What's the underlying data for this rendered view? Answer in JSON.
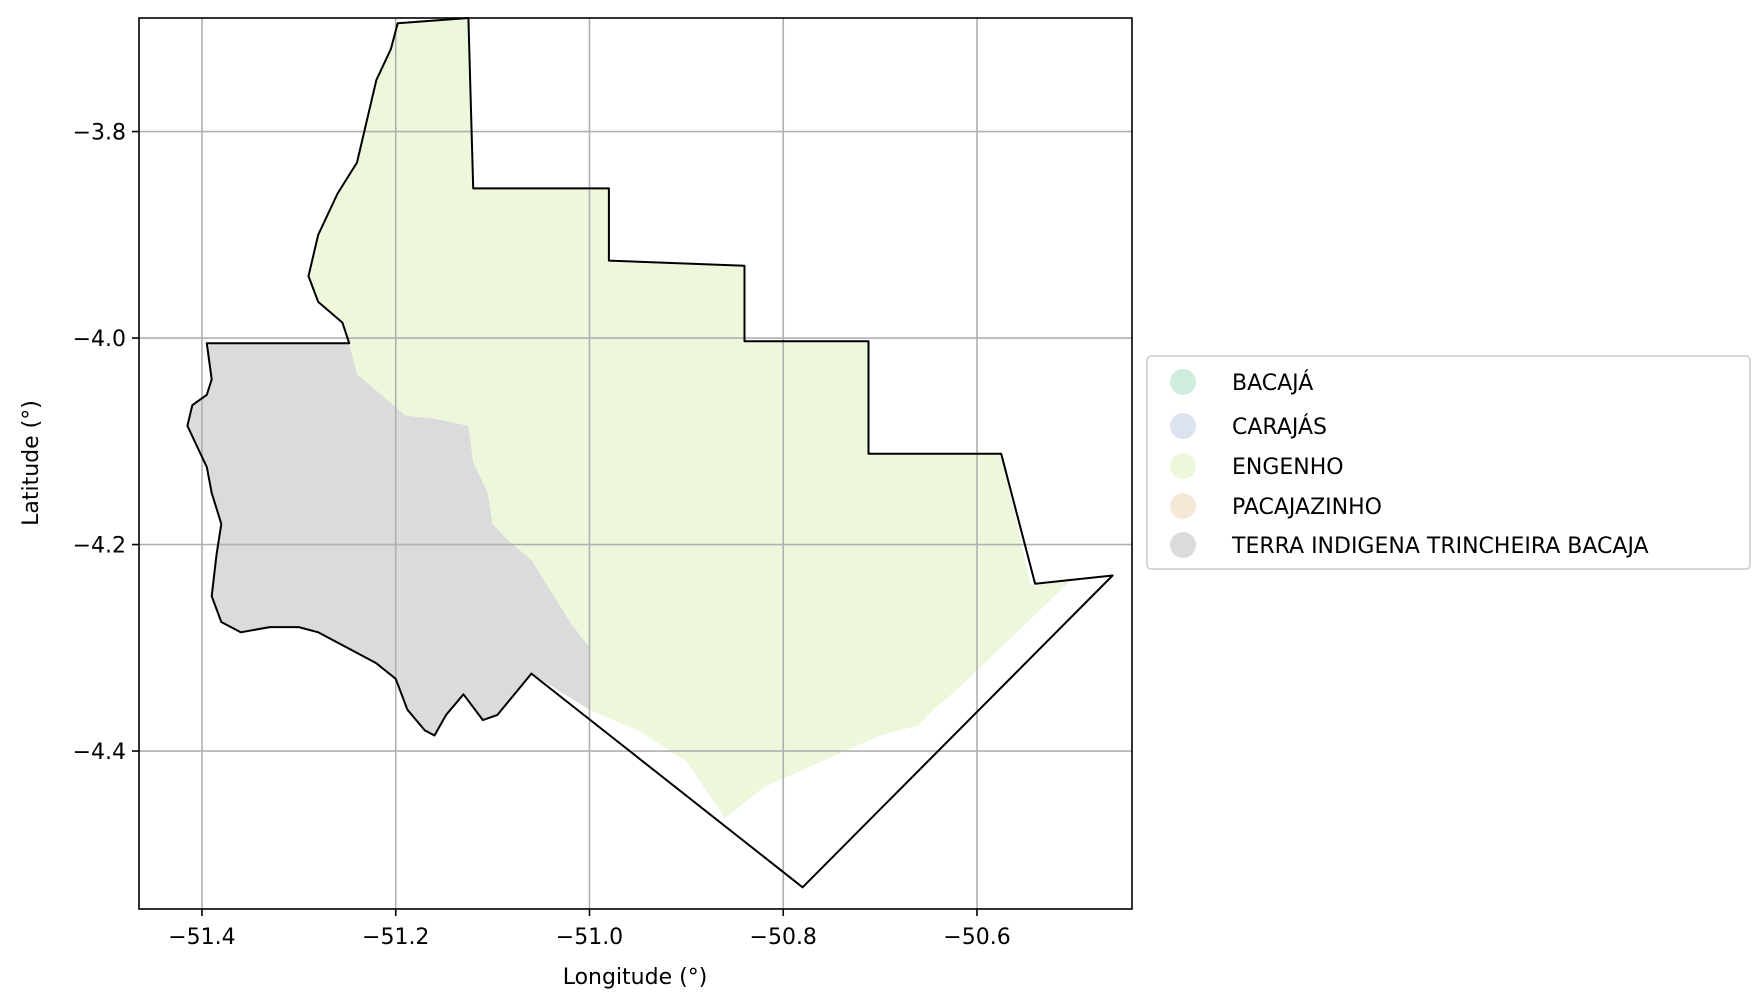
{
  "chart_data": {
    "type": "map",
    "xlabel": "Longitude (°)",
    "ylabel": "Latitude (°)",
    "xlim": [
      -51.465,
      -50.44
    ],
    "ylim": [
      -4.553,
      -3.69
    ],
    "grid": true,
    "x_ticks": [
      -51.4,
      -51.2,
      -51.0,
      -50.8,
      -50.6
    ],
    "y_ticks": [
      -3.8,
      -4.0,
      -4.2,
      -4.4
    ],
    "x_tick_labels": [
      "−51.4",
      "−51.2",
      "−51.0",
      "−50.8",
      "−50.6"
    ],
    "y_tick_labels": [
      "−3.8",
      "−4.0",
      "−4.2",
      "−4.4"
    ],
    "legend_position": "center-right",
    "legend": [
      {
        "label": "BACAJÁ",
        "color": "#cdeedd"
      },
      {
        "label": "CARAJÁS",
        "color": "#dde2f0"
      },
      {
        "label": "ENGENHO",
        "color": "#ecf7dc"
      },
      {
        "label": "PACAJAZINHO",
        "color": "#f5e8d7"
      },
      {
        "label": "TERRA INDIGENA TRINCHEIRA BACAJA",
        "color": "#dbdbdb"
      }
    ],
    "regions": [
      {
        "name": "TERRA INDIGENA TRINCHEIRA BACAJA",
        "color": "#dbdbdb",
        "polygon": [
          [
            -51.393,
            -4.005
          ],
          [
            -51.28,
            -4.005
          ],
          [
            -51.248,
            -4.005
          ],
          [
            -51.24,
            -4.035
          ],
          [
            -51.215,
            -4.055
          ],
          [
            -51.19,
            -4.075
          ],
          [
            -51.16,
            -4.078
          ],
          [
            -51.125,
            -4.085
          ],
          [
            -51.12,
            -4.12
          ],
          [
            -51.105,
            -4.15
          ],
          [
            -51.1,
            -4.18
          ],
          [
            -51.085,
            -4.195
          ],
          [
            -51.06,
            -4.215
          ],
          [
            -51.04,
            -4.245
          ],
          [
            -51.02,
            -4.275
          ],
          [
            -51.0,
            -4.3
          ],
          [
            -51.0,
            -4.36
          ],
          [
            -51.06,
            -4.325
          ],
          [
            -51.095,
            -4.365
          ],
          [
            -51.11,
            -4.37
          ],
          [
            -51.13,
            -4.345
          ],
          [
            -51.148,
            -4.365
          ],
          [
            -51.16,
            -4.385
          ],
          [
            -51.17,
            -4.38
          ],
          [
            -51.188,
            -4.36
          ],
          [
            -51.2,
            -4.33
          ],
          [
            -51.22,
            -4.315
          ],
          [
            -51.25,
            -4.3
          ],
          [
            -51.28,
            -4.285
          ],
          [
            -51.3,
            -4.28
          ],
          [
            -51.33,
            -4.28
          ],
          [
            -51.36,
            -4.285
          ],
          [
            -51.38,
            -4.275
          ],
          [
            -51.39,
            -4.25
          ],
          [
            -51.385,
            -4.21
          ],
          [
            -51.38,
            -4.18
          ],
          [
            -51.39,
            -4.15
          ],
          [
            -51.395,
            -4.125
          ],
          [
            -51.405,
            -4.105
          ],
          [
            -51.415,
            -4.085
          ],
          [
            -51.41,
            -4.065
          ],
          [
            -51.395,
            -4.055
          ],
          [
            -51.39,
            -4.04
          ],
          [
            -51.395,
            -4.015
          ]
        ]
      },
      {
        "name": "ENGENHO",
        "color": "#ecf7dc",
        "polygon": [
          [
            -51.198,
            -3.695
          ],
          [
            -51.125,
            -3.69
          ],
          [
            -51.12,
            -3.855
          ],
          [
            -50.98,
            -3.855
          ],
          [
            -50.98,
            -3.925
          ],
          [
            -50.84,
            -3.93
          ],
          [
            -50.84,
            -4.003
          ],
          [
            -50.712,
            -4.003
          ],
          [
            -50.712,
            -4.112
          ],
          [
            -50.575,
            -4.112
          ],
          [
            -50.545,
            -4.238
          ],
          [
            -50.54,
            -4.24
          ],
          [
            -50.5,
            -4.232
          ],
          [
            -50.62,
            -4.34
          ],
          [
            -50.645,
            -4.36
          ],
          [
            -50.66,
            -4.375
          ],
          [
            -50.7,
            -4.385
          ],
          [
            -50.76,
            -4.41
          ],
          [
            -50.82,
            -4.435
          ],
          [
            -50.86,
            -4.465
          ],
          [
            -50.9,
            -4.41
          ],
          [
            -50.95,
            -4.38
          ],
          [
            -51.0,
            -4.36
          ],
          [
            -51.0,
            -4.3
          ],
          [
            -51.02,
            -4.275
          ],
          [
            -51.04,
            -4.245
          ],
          [
            -51.06,
            -4.215
          ],
          [
            -51.085,
            -4.195
          ],
          [
            -51.1,
            -4.18
          ],
          [
            -51.105,
            -4.15
          ],
          [
            -51.12,
            -4.12
          ],
          [
            -51.125,
            -4.085
          ],
          [
            -51.16,
            -4.078
          ],
          [
            -51.19,
            -4.075
          ],
          [
            -51.215,
            -4.055
          ],
          [
            -51.24,
            -4.035
          ],
          [
            -51.248,
            -4.005
          ],
          [
            -51.255,
            -3.985
          ],
          [
            -51.28,
            -3.965
          ],
          [
            -51.29,
            -3.94
          ],
          [
            -51.28,
            -3.9
          ],
          [
            -51.26,
            -3.86
          ],
          [
            -51.24,
            -3.83
          ],
          [
            -51.23,
            -3.79
          ],
          [
            -51.22,
            -3.75
          ],
          [
            -51.205,
            -3.72
          ]
        ]
      }
    ],
    "boundary": [
      [
        -51.198,
        -3.695
      ],
      [
        -51.125,
        -3.69
      ],
      [
        -51.12,
        -3.855
      ],
      [
        -50.98,
        -3.855
      ],
      [
        -50.98,
        -3.925
      ],
      [
        -50.84,
        -3.93
      ],
      [
        -50.84,
        -4.003
      ],
      [
        -50.712,
        -4.003
      ],
      [
        -50.712,
        -4.112
      ],
      [
        -50.575,
        -4.112
      ],
      [
        -50.54,
        -4.238
      ],
      [
        -50.46,
        -4.23
      ],
      [
        -50.78,
        -4.532
      ],
      [
        -51.06,
        -4.325
      ],
      [
        -51.095,
        -4.365
      ],
      [
        -51.11,
        -4.37
      ],
      [
        -51.13,
        -4.345
      ],
      [
        -51.148,
        -4.365
      ],
      [
        -51.16,
        -4.385
      ],
      [
        -51.17,
        -4.38
      ],
      [
        -51.188,
        -4.36
      ],
      [
        -51.2,
        -4.33
      ],
      [
        -51.22,
        -4.315
      ],
      [
        -51.25,
        -4.3
      ],
      [
        -51.28,
        -4.285
      ],
      [
        -51.3,
        -4.28
      ],
      [
        -51.33,
        -4.28
      ],
      [
        -51.36,
        -4.285
      ],
      [
        -51.38,
        -4.275
      ],
      [
        -51.39,
        -4.25
      ],
      [
        -51.385,
        -4.21
      ],
      [
        -51.38,
        -4.18
      ],
      [
        -51.39,
        -4.15
      ],
      [
        -51.395,
        -4.125
      ],
      [
        -51.405,
        -4.105
      ],
      [
        -51.415,
        -4.085
      ],
      [
        -51.41,
        -4.065
      ],
      [
        -51.395,
        -4.055
      ],
      [
        -51.39,
        -4.04
      ],
      [
        -51.395,
        -4.005
      ],
      [
        -51.28,
        -4.005
      ],
      [
        -51.248,
        -4.005
      ],
      [
        -51.255,
        -3.985
      ],
      [
        -51.28,
        -3.965
      ],
      [
        -51.29,
        -3.94
      ],
      [
        -51.28,
        -3.9
      ],
      [
        -51.26,
        -3.86
      ],
      [
        -51.24,
        -3.83
      ],
      [
        -51.23,
        -3.79
      ],
      [
        -51.22,
        -3.75
      ],
      [
        -51.205,
        -3.72
      ]
    ],
    "boundary_color": "#000000"
  }
}
